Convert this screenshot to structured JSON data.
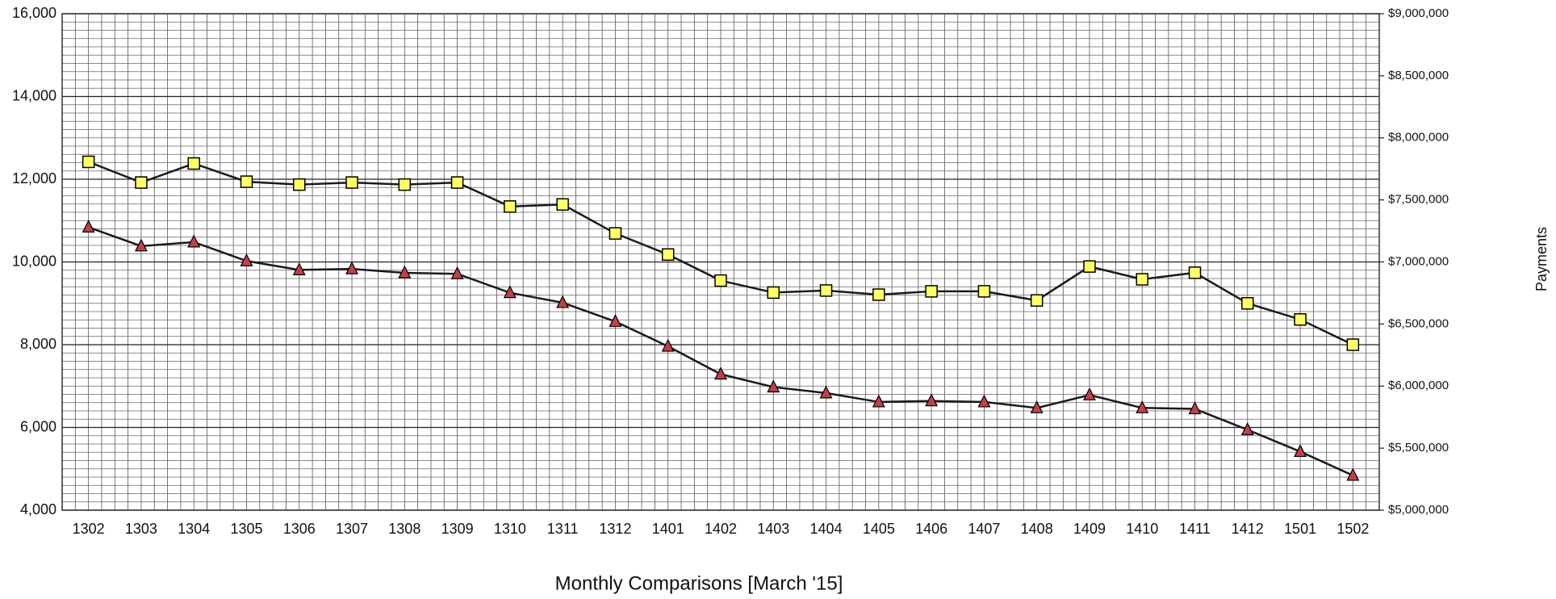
{
  "chart_data": {
    "type": "line",
    "x_label": "Monthly Comparisons [March '15]",
    "y2_label": "Payments",
    "categories": [
      "1302",
      "1303",
      "1304",
      "1305",
      "1306",
      "1307",
      "1308",
      "1309",
      "1310",
      "1311",
      "1312",
      "1401",
      "1402",
      "1403",
      "1404",
      "1405",
      "1406",
      "1407",
      "1408",
      "1409",
      "1410",
      "1411",
      "1412",
      "1501",
      "1502"
    ],
    "series": [
      {
        "color": "#ffff66",
        "marker": "square",
        "values": [
          12420,
          11920,
          12380,
          11940,
          11870,
          11920,
          11870,
          11920,
          11340,
          11390,
          10690,
          10180,
          9550,
          9260,
          9310,
          9210,
          9290,
          9290,
          9070,
          9890,
          9580,
          9740,
          9000,
          8610,
          8000
        ]
      },
      {
        "color": "#c0404a",
        "marker": "triangle",
        "axis": "y2",
        "values": [
          7280000,
          7128000,
          7160000,
          7008000,
          6936000,
          6944000,
          6912000,
          6904000,
          6752000,
          6672000,
          6520000,
          6320000,
          6096000,
          5992000,
          5944000,
          5872000,
          5880000,
          5872000,
          5824000,
          5928000,
          5824000,
          5816000,
          5648000,
          5472000,
          5280000
        ]
      }
    ],
    "ylim": [
      4000,
      16000
    ],
    "yticks": [
      {
        "value": 4000,
        "label": "4,000"
      },
      {
        "value": 6000,
        "label": "6,000"
      },
      {
        "value": 8000,
        "label": "8,000"
      },
      {
        "value": 10000,
        "label": "10,000"
      },
      {
        "value": 12000,
        "label": "12,000"
      },
      {
        "value": 14000,
        "label": "14,000"
      },
      {
        "value": 16000,
        "label": "16,000"
      }
    ],
    "y2lim": [
      5000000,
      9000000
    ],
    "y2ticks": [
      {
        "value": 5000000,
        "label": "$5,000,000"
      },
      {
        "value": 5500000,
        "label": "$5,500,000"
      },
      {
        "value": 6000000,
        "label": "$6,000,000"
      },
      {
        "value": 6500000,
        "label": "$6,500,000"
      },
      {
        "value": 7000000,
        "label": "$7,000,000"
      },
      {
        "value": 7500000,
        "label": "$7,500,000"
      },
      {
        "value": 8000000,
        "label": "$8,000,000"
      },
      {
        "value": 8500000,
        "label": "$8,500,000"
      },
      {
        "value": 9000000,
        "label": "$9,000,000"
      }
    ],
    "grid": true,
    "line_color": "#1a1a1a"
  }
}
